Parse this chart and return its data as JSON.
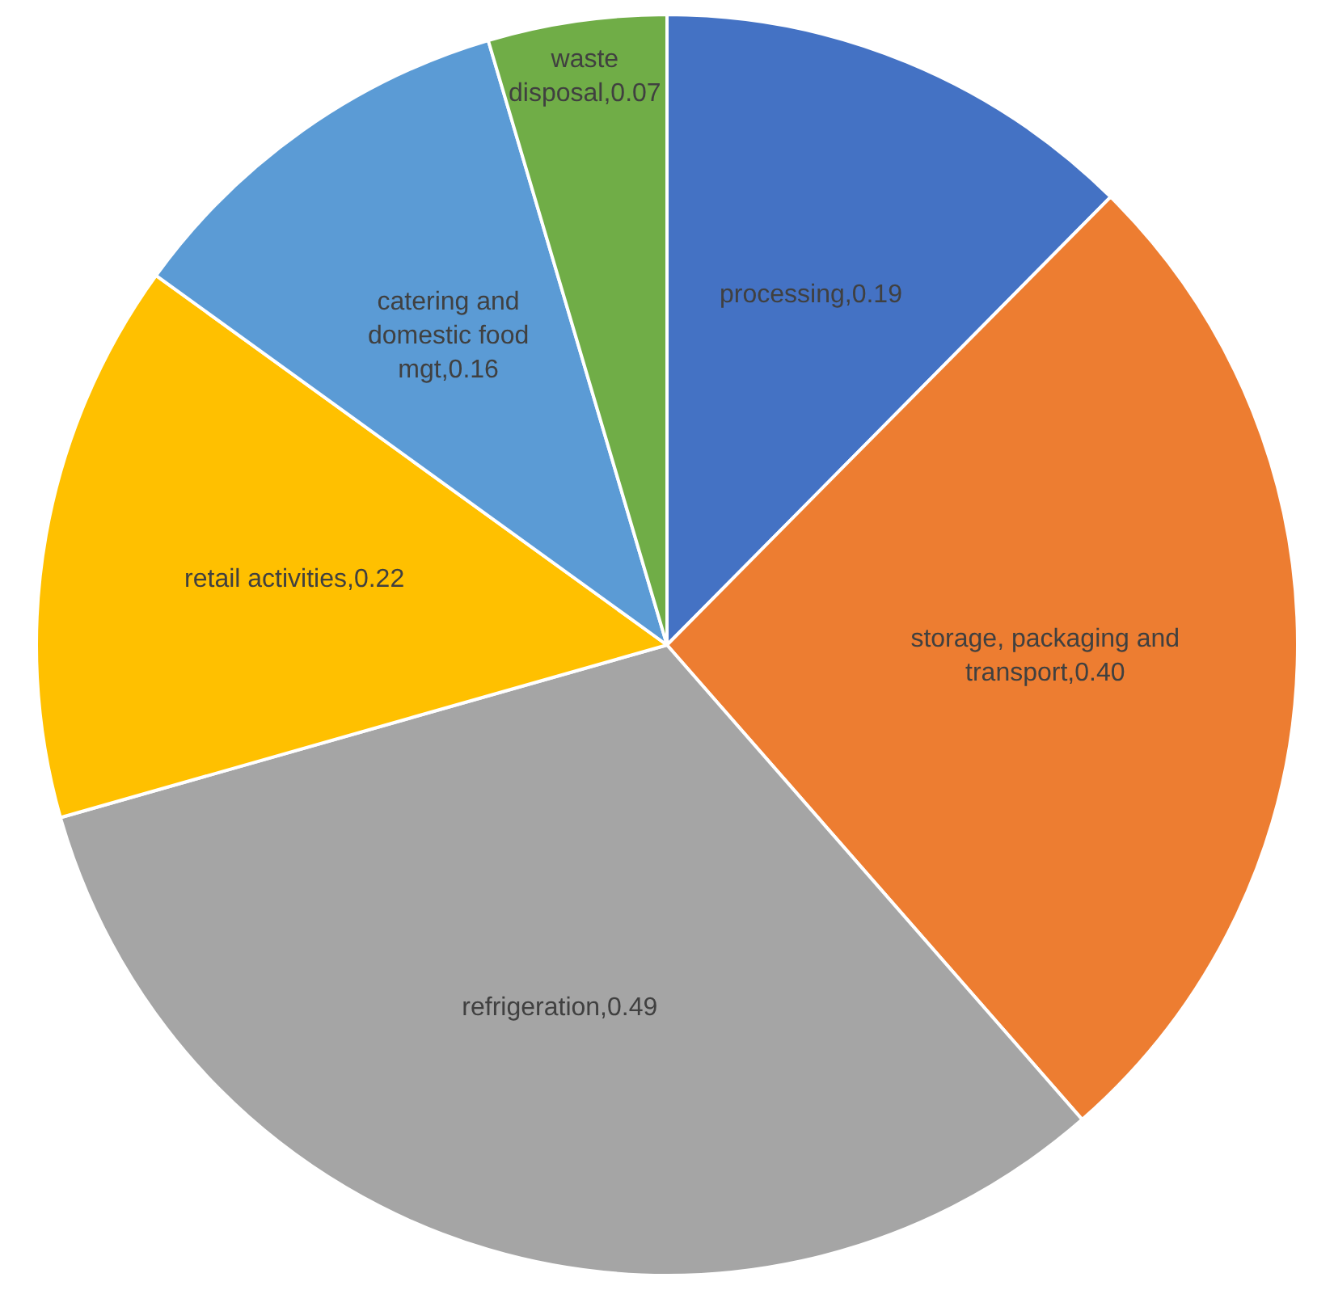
{
  "chart_data": {
    "type": "pie",
    "categories": [
      "processing",
      "storage, packaging and transport",
      "refrigeration",
      "retail activities",
      "catering and domestic food mgt",
      "waste disposal"
    ],
    "values": [
      0.19,
      0.4,
      0.49,
      0.22,
      0.16,
      0.07
    ],
    "value_labels": [
      "0.19",
      "0.40",
      "0.49",
      "0.22",
      "0.16",
      "0.07"
    ],
    "colors": [
      "#4472c4",
      "#ed7d31",
      "#a5a5a5",
      "#ffc000",
      "#5b9bd5",
      "#70ad47"
    ],
    "legend": false
  }
}
